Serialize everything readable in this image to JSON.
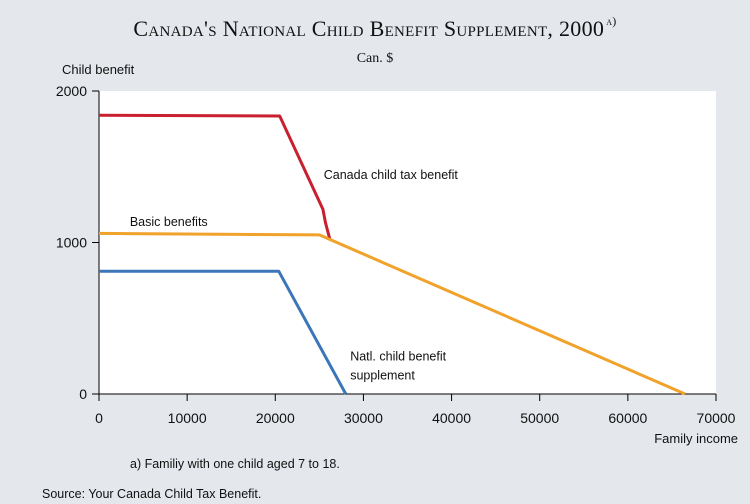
{
  "chart_data": {
    "type": "line",
    "title": "Canada's National Child Benefit Supplement, 2000",
    "title_note": "a)",
    "subtitle": "Can. $",
    "ylabel": "Child benefit",
    "xlabel": "Family income",
    "xlim": [
      0,
      70000
    ],
    "ylim": [
      0,
      2000
    ],
    "xticks": [
      0,
      10000,
      20000,
      30000,
      40000,
      50000,
      60000,
      70000
    ],
    "yticks": [
      0,
      1000,
      2000
    ],
    "grid": false,
    "series": [
      {
        "name": "Canada child tax benefit",
        "color": "#c8202f",
        "points": [
          [
            0,
            1840
          ],
          [
            20500,
            1835
          ],
          [
            25400,
            1220
          ],
          [
            25700,
            1130
          ],
          [
            26200,
            1020
          ]
        ]
      },
      {
        "name": "Basic benefits",
        "color": "#f0a22a",
        "points": [
          [
            0,
            1060
          ],
          [
            25000,
            1050
          ],
          [
            66500,
            0
          ]
        ]
      },
      {
        "name": "Natl. child benefit supplement",
        "color": "#3b76b8",
        "points": [
          [
            0,
            810
          ],
          [
            20400,
            810
          ],
          [
            28000,
            0
          ]
        ]
      }
    ],
    "annotations": [
      {
        "text": "Canada child tax benefit",
        "x": 25500,
        "y": 1420,
        "lines": [
          "Canada child tax benefit"
        ]
      },
      {
        "text": "Basic benefits",
        "x": 3500,
        "y": 1110,
        "lines": [
          "Basic benefits"
        ]
      },
      {
        "text": "Natl. child benefit supplement",
        "x": 28500,
        "y": 220,
        "lines": [
          "Natl. child benefit",
          "supplement"
        ]
      }
    ]
  },
  "footnote": "a) Familiy with one child aged 7 to 18.",
  "source": "Source: Your Canada Child Tax Benefit."
}
